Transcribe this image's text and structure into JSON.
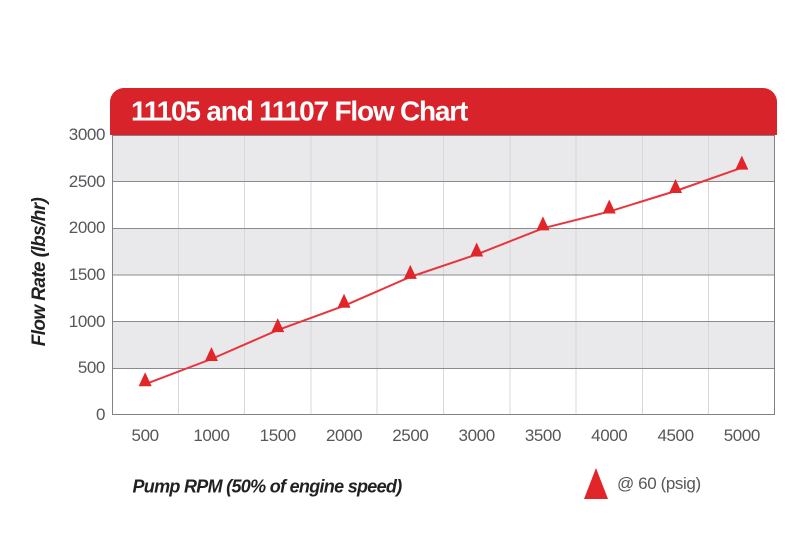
{
  "banner": {
    "title": "11105 and 11107 Flow Chart"
  },
  "legend": {
    "label": "@ 60 (psig)"
  },
  "colors": {
    "banner_red": "#d8232b",
    "series_red": "#e12529",
    "line_red": "#e8353c",
    "band_gray": "#e9e9ec",
    "h_grid": "#8a8b8e",
    "v_grid": "#d8d8dc",
    "plot_border": "#818285",
    "tick_text": "#56575b",
    "axis_title_text": "#232024",
    "background": "#ffffff"
  },
  "chart_data": {
    "type": "line",
    "title": "11105 and 11107 Flow Chart",
    "xlabel": "Pump RPM (50% of engine speed)",
    "ylabel": "Flow Rate (lbs/hr)",
    "x": [
      500,
      1000,
      1500,
      2000,
      2500,
      3000,
      3500,
      4000,
      4500,
      5000
    ],
    "series": [
      {
        "name": "@ 60 (psig)",
        "marker": "triangle-up",
        "values": [
          330,
          600,
          910,
          1170,
          1480,
          1720,
          2000,
          2180,
          2400,
          2650
        ]
      }
    ],
    "x_ticks": [
      500,
      1000,
      1500,
      2000,
      2500,
      3000,
      3500,
      4000,
      4500,
      5000
    ],
    "y_ticks": [
      0,
      500,
      1000,
      1500,
      2000,
      2500,
      3000
    ],
    "xlim": [
      250,
      5250
    ],
    "ylim": [
      0,
      3000
    ],
    "grid": "horizontal gridlines every 500 with alternating gray bands; faint vertical gridlines between categories",
    "legend_position": "bottom-right below chart"
  }
}
